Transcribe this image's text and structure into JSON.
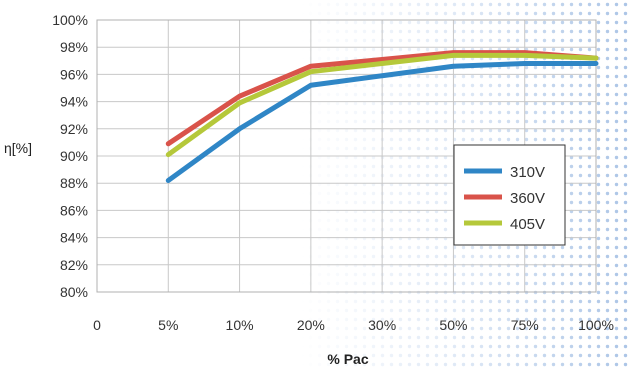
{
  "chart_data": {
    "type": "line",
    "title": "",
    "xlabel": "% Pac",
    "ylabel": "η[%]",
    "x_categories": [
      "0",
      "5%",
      "10%",
      "20%",
      "30%",
      "50%",
      "75%",
      "100%"
    ],
    "x": [
      "5%",
      "10%",
      "20%",
      "30%",
      "50%",
      "75%",
      "100%"
    ],
    "y_ticks": [
      "80%",
      "82%",
      "84%",
      "86%",
      "88%",
      "90%",
      "92%",
      "94%",
      "96%",
      "98%",
      "100%"
    ],
    "ylim": [
      80,
      100
    ],
    "grid": true,
    "legend_position": "right",
    "series": [
      {
        "name": "310V",
        "color": "#2f86c6",
        "values": [
          88.2,
          92.0,
          95.2,
          95.9,
          96.6,
          96.8,
          96.8
        ]
      },
      {
        "name": "360V",
        "color": "#d9534a",
        "values": [
          90.9,
          94.4,
          96.6,
          97.1,
          97.6,
          97.6,
          97.2
        ]
      },
      {
        "name": "405V",
        "color": "#b5c83a",
        "values": [
          90.1,
          93.9,
          96.2,
          96.8,
          97.4,
          97.4,
          97.2
        ]
      }
    ]
  }
}
